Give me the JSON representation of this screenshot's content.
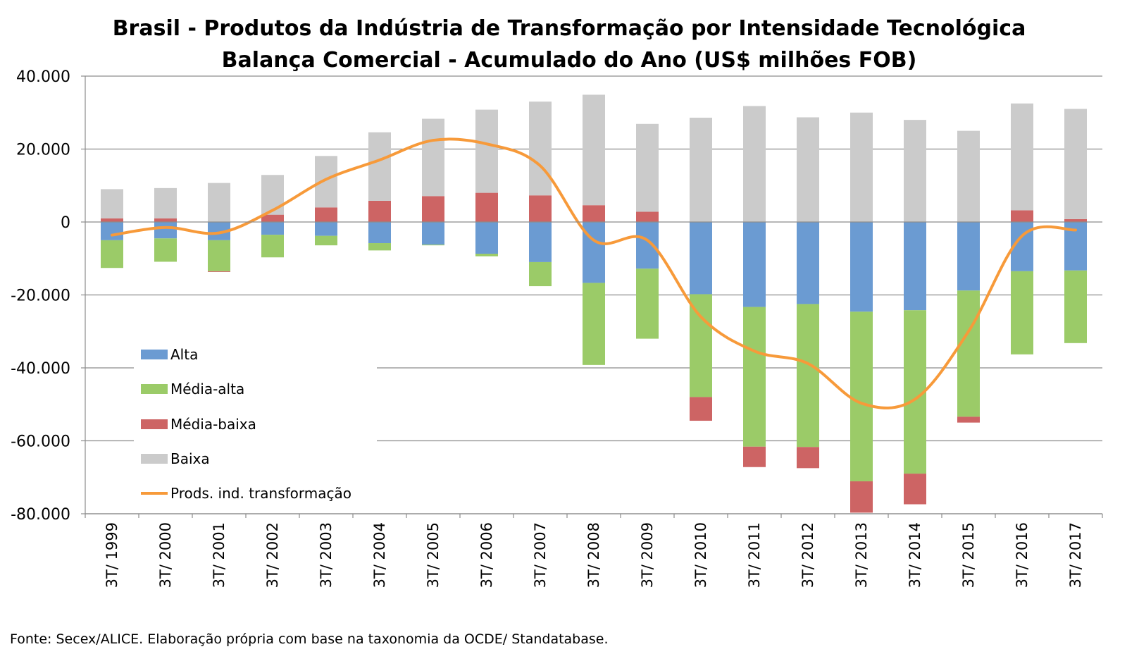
{
  "chart_data": {
    "type": "bar",
    "stacked": true,
    "title": "Brasil - Produtos da Indústria de Transformação por Intensidade Tecnológica",
    "subtitle": "Balança Comercial - Acumulado do Ano (US$ milhões FOB)",
    "categories": [
      "3T/ 1999",
      "3T/ 2000",
      "3T/ 2001",
      "3T/ 2002",
      "3T/ 2003",
      "3T/ 2004",
      "3T/ 2005",
      "3T/ 2006",
      "3T/ 2007",
      "3T/ 2008",
      "3T/ 2009",
      "3T/ 2010",
      "3T/ 2011",
      "3T/ 2012",
      "3T/ 2013",
      "3T/ 2014",
      "3T/ 2015",
      "3T/ 2016",
      "3T/ 2017"
    ],
    "ylim": [
      -80000,
      40000
    ],
    "yticks": [
      40000,
      20000,
      0,
      -20000,
      -40000,
      -60000,
      -80000
    ],
    "ytick_labels": [
      "40.000",
      "20.000",
      "0",
      "-20.000",
      "-40.000",
      "-60.000",
      "-80.000"
    ],
    "grid": true,
    "legend_position": "left-inside",
    "series": [
      {
        "name": "Alta",
        "type": "bar",
        "color": "#6b9bd2",
        "values": [
          -5000,
          -4500,
          -5000,
          -3500,
          -3800,
          -5800,
          -6200,
          -8700,
          -11000,
          -16700,
          -12800,
          -19800,
          -23300,
          -22500,
          -24600,
          -24200,
          -18800,
          -13500,
          -13300
        ]
      },
      {
        "name": "Média-alta",
        "type": "bar",
        "color": "#9bcb68",
        "values": [
          -7600,
          -6400,
          -8500,
          -6200,
          -2600,
          -2000,
          -200,
          -700,
          -6600,
          -22500,
          -19200,
          -28200,
          -38300,
          -39200,
          -46500,
          -44800,
          -34600,
          -22800,
          -19900
        ]
      },
      {
        "name": "Média-baixa",
        "type": "bar",
        "color": "#cd6464",
        "values": [
          1000,
          1000,
          -200,
          2000,
          4000,
          5800,
          7100,
          8000,
          7300,
          4600,
          2800,
          -6500,
          -5600,
          -5800,
          -8600,
          -8400,
          -1600,
          3200,
          800
        ]
      },
      {
        "name": "Baixa",
        "type": "bar",
        "color": "#cbcbcb",
        "values": [
          8000,
          8300,
          10700,
          10900,
          14100,
          18800,
          21200,
          22800,
          25700,
          30300,
          24100,
          28600,
          31800,
          28700,
          30000,
          28000,
          25000,
          29300,
          30200
        ]
      },
      {
        "name": "Prods. ind. transformação",
        "type": "line",
        "color": "#f79a3a",
        "values": [
          -3600,
          -1500,
          -3000,
          3200,
          11700,
          17000,
          22400,
          21400,
          15400,
          -5000,
          -5000,
          -26000,
          -35400,
          -38800,
          -49700,
          -48600,
          -30000,
          -3800,
          -2200
        ]
      }
    ]
  },
  "source": "Fonte: Secex/ALICE. Elaboração própria com base na taxonomia da OCDE/ Standatabase."
}
